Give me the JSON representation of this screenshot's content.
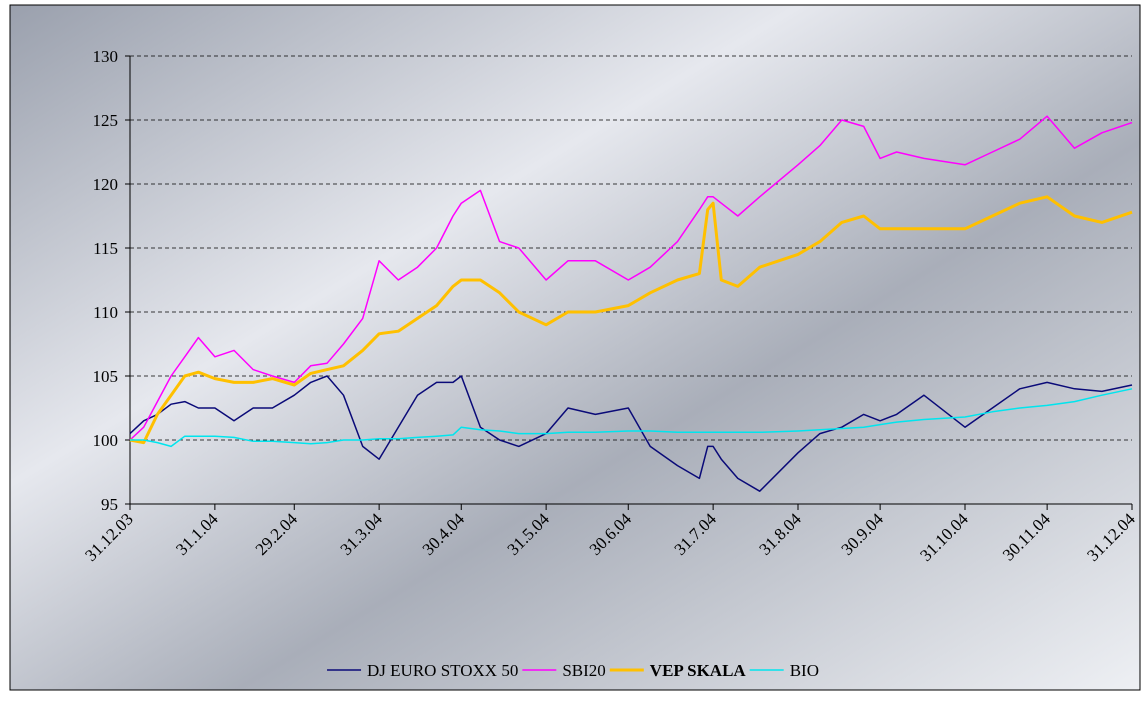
{
  "chart_data": {
    "type": "line",
    "x": [
      0,
      5,
      10,
      15,
      20,
      25,
      31,
      38,
      45,
      52,
      60,
      66,
      72,
      78,
      85,
      91,
      98,
      105,
      112,
      118,
      121,
      128,
      135,
      142,
      152,
      160,
      170,
      182,
      190,
      200,
      208,
      211,
      213,
      216,
      222,
      230,
      244,
      252,
      260,
      268,
      274,
      280,
      290,
      305,
      315,
      325,
      335,
      345,
      355,
      366
    ],
    "xlim": [
      0,
      366
    ],
    "xticks": [
      {
        "value": 0,
        "label": "31.12.03"
      },
      {
        "value": 31,
        "label": "31.1.04"
      },
      {
        "value": 60,
        "label": "29.2.04"
      },
      {
        "value": 91,
        "label": "31.3.04"
      },
      {
        "value": 121,
        "label": "30.4.04"
      },
      {
        "value": 152,
        "label": "31.5.04"
      },
      {
        "value": 182,
        "label": "30.6.04"
      },
      {
        "value": 213,
        "label": "31.7.04"
      },
      {
        "value": 244,
        "label": "31.8.04"
      },
      {
        "value": 274,
        "label": "30.9.04"
      },
      {
        "value": 305,
        "label": "31.10.04"
      },
      {
        "value": 335,
        "label": "30.11.04"
      },
      {
        "value": 366,
        "label": "31.12.04"
      }
    ],
    "ylim": [
      95,
      130
    ],
    "yticks": [
      95,
      100,
      105,
      110,
      115,
      120,
      125,
      130
    ],
    "grid": true,
    "legend": "bottom",
    "series": [
      {
        "name": "DJ EURO STOXX 50",
        "color": "#0a0a78",
        "line_width": 1.5,
        "bold": false,
        "values": [
          100.5,
          101.5,
          102,
          102.8,
          103,
          102.5,
          102.5,
          101.5,
          102.5,
          102.5,
          103.5,
          104.5,
          105,
          103.5,
          99.5,
          98.5,
          101,
          103.5,
          104.5,
          104.5,
          105,
          101,
          100,
          99.5,
          100.5,
          102.5,
          102,
          102.5,
          99.5,
          98,
          97,
          99.5,
          99.5,
          98.5,
          97,
          96,
          99,
          100.5,
          101,
          102,
          101.5,
          102,
          103.5,
          101,
          102.5,
          104,
          104.5,
          104,
          103.8,
          104.3
        ]
      },
      {
        "name": "SBI20",
        "color": "#ff00ff",
        "line_width": 1.5,
        "bold": false,
        "values": [
          100,
          101,
          103,
          105,
          106.5,
          108,
          106.5,
          107,
          105.5,
          105,
          104.5,
          105.8,
          106,
          107.5,
          109.5,
          114,
          112.5,
          113.5,
          115,
          117.5,
          118.5,
          119.5,
          115.5,
          115,
          112.5,
          114,
          114,
          112.5,
          113.5,
          115.5,
          118,
          119,
          119,
          118.5,
          117.5,
          119,
          121.5,
          123,
          125,
          124.5,
          122,
          122.5,
          122,
          121.5,
          122.5,
          123.5,
          125.3,
          122.8,
          124,
          124.8
        ]
      },
      {
        "name": "VEP SKALA",
        "color": "#ffc000",
        "line_width": 3,
        "bold": true,
        "values": [
          100,
          99.8,
          102,
          103.5,
          105,
          105.3,
          104.8,
          104.5,
          104.5,
          104.8,
          104.3,
          105.2,
          105.5,
          105.8,
          107,
          108.3,
          108.5,
          109.5,
          110.5,
          112,
          112.5,
          112.5,
          111.5,
          110,
          109,
          110,
          110,
          110.5,
          111.5,
          112.5,
          113,
          118,
          118.5,
          112.5,
          112,
          113.5,
          114.5,
          115.5,
          117,
          117.5,
          116.5,
          116.5,
          116.5,
          116.5,
          117.5,
          118.5,
          119,
          117.5,
          117,
          117.8
        ]
      },
      {
        "name": "BIO",
        "color": "#00e5ee",
        "line_width": 1.5,
        "bold": false,
        "values": [
          100,
          100,
          99.8,
          99.5,
          100.3,
          100.3,
          100.3,
          100.2,
          99.9,
          99.9,
          99.8,
          99.7,
          99.8,
          100,
          100,
          100.1,
          100.1,
          100.2,
          100.3,
          100.4,
          101,
          100.8,
          100.7,
          100.5,
          100.5,
          100.6,
          100.6,
          100.7,
          100.7,
          100.6,
          100.6,
          100.6,
          100.6,
          100.6,
          100.6,
          100.6,
          100.7,
          100.8,
          100.9,
          101,
          101.2,
          101.4,
          101.6,
          101.8,
          102.2,
          102.5,
          102.7,
          103,
          103.5,
          104
        ]
      }
    ]
  }
}
